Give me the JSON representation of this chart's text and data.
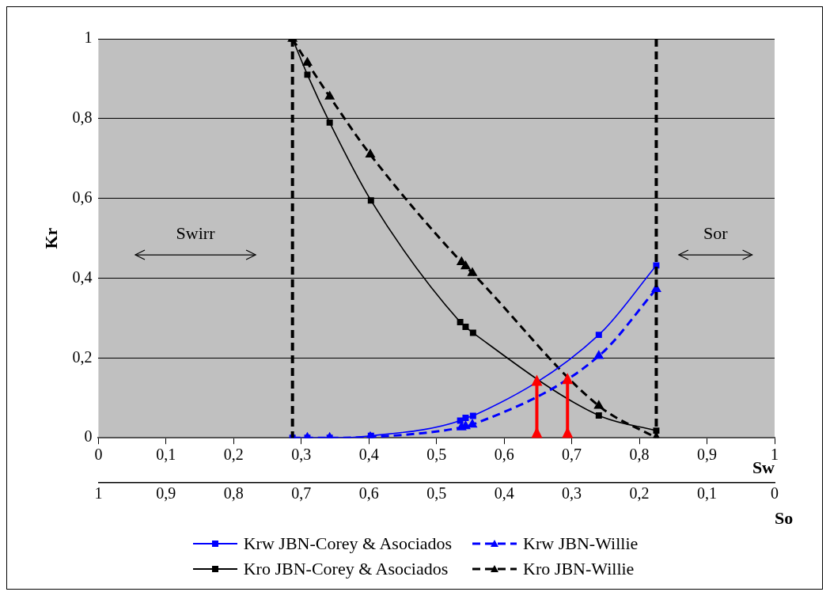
{
  "chart_data": {
    "type": "line",
    "xlabel": "Sw",
    "x2label": "So",
    "ylabel": "Kr",
    "xlim": [
      0,
      1
    ],
    "xticks": [
      0,
      {
        "value": 0.1,
        "label": "0,1"
      },
      {
        "value": 0.2,
        "label": "0,2"
      },
      {
        "value": 0.3,
        "label": "0,3"
      },
      {
        "value": 0.4,
        "label": "0,4"
      },
      {
        "value": 0.5,
        "label": "0,5"
      },
      {
        "value": 0.6,
        "label": "0,6"
      },
      {
        "value": 0.7,
        "label": "0,7"
      },
      {
        "value": 0.8,
        "label": "0,8"
      },
      {
        "value": 0.9,
        "label": "0,9"
      },
      1
    ],
    "x2lim": [
      1,
      0
    ],
    "x2ticks": [
      1,
      {
        "value": 0.9,
        "label": "0,9"
      },
      {
        "value": 0.8,
        "label": "0,8"
      },
      {
        "value": 0.7,
        "label": "0,7"
      },
      {
        "value": 0.6,
        "label": "0,6"
      },
      {
        "value": 0.5,
        "label": "0,5"
      },
      {
        "value": 0.4,
        "label": "0,4"
      },
      {
        "value": 0.3,
        "label": "0,3"
      },
      {
        "value": 0.2,
        "label": "0,2"
      },
      {
        "value": 0.1,
        "label": "0,1"
      },
      0
    ],
    "ylim": [
      0,
      1
    ],
    "yticks": [
      0,
      {
        "value": 0.2,
        "label": "0,2"
      },
      {
        "value": 0.4,
        "label": "0,4"
      },
      {
        "value": 0.6,
        "label": "0,6"
      },
      {
        "value": 0.8,
        "label": "0,8"
      },
      1
    ],
    "grid": "y",
    "legend": "bottom",
    "series": [
      {
        "name": "Krw JBN-Corey & Asociados",
        "color": "#0000ff",
        "marker": "square",
        "line_style": "solid",
        "x": [
          0.287,
          0.309,
          0.342,
          0.403,
          0.535,
          0.543,
          0.554,
          0.74,
          0.825
        ],
        "values": [
          0,
          0,
          0,
          0.005,
          0.043,
          0.05,
          0.055,
          0.258,
          0.432
        ]
      },
      {
        "name": "Krw JBN-Willie",
        "color": "#0000ff",
        "marker": "triangle",
        "line_style": "dashed",
        "x": [
          0.287,
          0.309,
          0.342,
          0.402,
          0.537,
          0.543,
          0.553,
          0.74,
          0.825
        ],
        "values": [
          0,
          0,
          0,
          0.002,
          0.026,
          0.029,
          0.033,
          0.205,
          0.373
        ]
      },
      {
        "name": "Kro JBN-Corey & Asociados",
        "color": "#000000",
        "marker": "square",
        "line_style": "solid",
        "x": [
          0.287,
          0.309,
          0.342,
          0.403,
          0.535,
          0.543,
          0.554,
          0.74,
          0.825
        ],
        "values": [
          1,
          0.91,
          0.79,
          0.595,
          0.29,
          0.278,
          0.263,
          0.056,
          0.018
        ]
      },
      {
        "name": "Kro JBN-Willie",
        "color": "#000000",
        "marker": "triangle",
        "line_style": "dashed",
        "x": [
          0.287,
          0.309,
          0.342,
          0.402,
          0.537,
          0.543,
          0.553,
          0.74,
          0.825
        ],
        "values": [
          1,
          0.94,
          0.855,
          0.71,
          0.44,
          0.43,
          0.413,
          0.08,
          0
        ]
      }
    ],
    "ref_lines": [
      {
        "axis": "x",
        "value": 0.287,
        "color": "#000000",
        "line_style": "dashed"
      },
      {
        "axis": "x",
        "value": 0.825,
        "color": "#000000",
        "line_style": "dashed"
      }
    ],
    "annotations": [
      "Swirr",
      "Sor"
    ]
  }
}
